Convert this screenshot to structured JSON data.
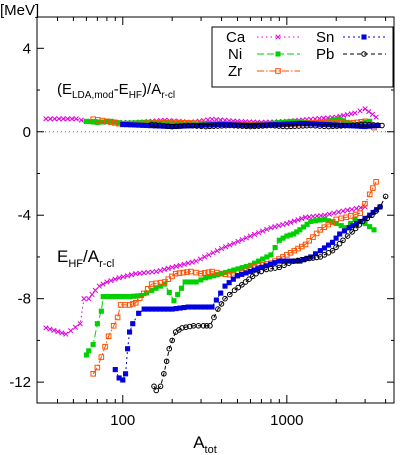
{
  "chart_data": {
    "type": "line",
    "title": "",
    "ylabel": "[MeV]",
    "xlabel": "A",
    "xlabel_sub": "tot",
    "xscale": "log",
    "xlim": [
      30,
      4500
    ],
    "ylim": [
      -13,
      5.5
    ],
    "xticks": [
      100,
      1000
    ],
    "xtick_labels": [
      "100",
      "1000"
    ],
    "yticks": [
      4,
      0,
      -4,
      -8,
      -12
    ],
    "ytick_labels": [
      "4",
      "0",
      "-4",
      "-8",
      "-12"
    ],
    "reference_line_y": 0,
    "annotations": [
      {
        "id": "upper",
        "main": "(E",
        "sub1": "LDA,mod",
        "mid": "-E",
        "sub2": "HF",
        "tail": ")/A",
        "sub3": "r-cl"
      },
      {
        "id": "lower",
        "main": "E",
        "sub1": "HF",
        "tail": "/A",
        "sub3": "r-cl"
      }
    ],
    "legend": {
      "placement": "top-right"
    },
    "series": [
      {
        "name": "Ca",
        "color": "#e000e0",
        "marker": "x",
        "dash": "1.5,3",
        "lower": [
          [
            34,
            -9.4
          ],
          [
            45,
            -9.7
          ],
          [
            55,
            -9.2
          ],
          [
            58,
            -8.0
          ],
          [
            62,
            -8.0
          ],
          [
            68,
            -7.6
          ],
          [
            72,
            -7.4
          ],
          [
            80,
            -7.2
          ],
          [
            95,
            -7.0
          ],
          [
            120,
            -6.8
          ],
          [
            160,
            -6.7
          ],
          [
            200,
            -6.5
          ],
          [
            280,
            -6.2
          ],
          [
            400,
            -5.6
          ],
          [
            600,
            -5.0
          ],
          [
            800,
            -4.6
          ],
          [
            1000,
            -4.4
          ],
          [
            1300,
            -4.1
          ],
          [
            1700,
            -4.0
          ],
          [
            2200,
            -3.8
          ],
          [
            3000,
            -3.6
          ]
        ],
        "upper": [
          [
            34,
            0.62
          ],
          [
            52,
            0.62
          ],
          [
            60,
            0.5
          ],
          [
            80,
            0.45
          ],
          [
            120,
            0.45
          ],
          [
            180,
            0.55
          ],
          [
            220,
            0.5
          ],
          [
            260,
            0.45
          ],
          [
            350,
            0.6
          ],
          [
            500,
            0.5
          ],
          [
            700,
            0.45
          ],
          [
            1000,
            0.5
          ],
          [
            1400,
            0.6
          ],
          [
            2000,
            0.7
          ],
          [
            2600,
            0.9
          ],
          [
            3000,
            1.1
          ],
          [
            3500,
            0.7
          ]
        ]
      },
      {
        "name": "Ni",
        "color": "#00d000",
        "marker": "square-filled",
        "dash": "7,3",
        "lower": [
          [
            60,
            -10.7
          ],
          [
            62,
            -10.5
          ],
          [
            66,
            -10.2
          ],
          [
            70,
            -9.2
          ],
          [
            74,
            -8.6
          ],
          [
            76,
            -7.9
          ],
          [
            90,
            -7.9
          ],
          [
            110,
            -7.9
          ],
          [
            130,
            -7.85
          ],
          [
            150,
            -7.6
          ],
          [
            180,
            -7.3
          ],
          [
            205,
            -8.1
          ],
          [
            240,
            -7.2
          ],
          [
            280,
            -7.2
          ],
          [
            320,
            -7.0
          ],
          [
            400,
            -6.8
          ],
          [
            600,
            -6.4
          ],
          [
            800,
            -5.9
          ],
          [
            900,
            -5.2
          ],
          [
            1000,
            -5.0
          ],
          [
            1100,
            -4.9
          ],
          [
            1200,
            -4.7
          ],
          [
            1400,
            -4.3
          ],
          [
            1700,
            -4.2
          ],
          [
            2000,
            -4.4
          ],
          [
            2300,
            -4.6
          ],
          [
            2600,
            -4.2
          ],
          [
            3000,
            -4.4
          ],
          [
            3400,
            -4.7
          ]
        ],
        "upper": [
          [
            60,
            0.5
          ],
          [
            70,
            0.45
          ],
          [
            85,
            0.5
          ],
          [
            100,
            0.4
          ],
          [
            140,
            0.45
          ],
          [
            200,
            0.4
          ],
          [
            300,
            0.35
          ],
          [
            450,
            0.4
          ],
          [
            600,
            0.35
          ],
          [
            800,
            0.4
          ],
          [
            1100,
            0.5
          ],
          [
            1500,
            0.4
          ],
          [
            2100,
            0.6
          ],
          [
            2600,
            0.3
          ],
          [
            3200,
            0.5
          ]
        ]
      },
      {
        "name": "Zr",
        "color": "#ff5000",
        "marker": "square-open",
        "dash": "7,2,1.5,2",
        "lower": [
          [
            66,
            -11.6
          ],
          [
            70,
            -11.3
          ],
          [
            74,
            -10.8
          ],
          [
            78,
            -10.3
          ],
          [
            82,
            -9.8
          ],
          [
            88,
            -9.3
          ],
          [
            93,
            -8.9
          ],
          [
            97,
            -8.3
          ],
          [
            110,
            -8.3
          ],
          [
            120,
            -8.2
          ],
          [
            150,
            -7.3
          ],
          [
            180,
            -7.2
          ],
          [
            210,
            -6.8
          ],
          [
            260,
            -6.7
          ],
          [
            300,
            -6.8
          ],
          [
            350,
            -6.7
          ],
          [
            400,
            -6.8
          ],
          [
            500,
            -6.9
          ],
          [
            600,
            -6.5
          ],
          [
            800,
            -6.3
          ],
          [
            1000,
            -5.9
          ],
          [
            1300,
            -5.4
          ],
          [
            1600,
            -4.7
          ],
          [
            2000,
            -4.2
          ],
          [
            2300,
            -4.1
          ],
          [
            2800,
            -3.9
          ],
          [
            3200,
            -3.0
          ],
          [
            3500,
            -2.4
          ]
        ],
        "upper": [
          [
            66,
            0.6
          ],
          [
            80,
            0.5
          ],
          [
            100,
            0.35
          ],
          [
            140,
            0.4
          ],
          [
            200,
            0.45
          ],
          [
            300,
            0.4
          ],
          [
            400,
            0.35
          ],
          [
            600,
            0.35
          ],
          [
            900,
            0.35
          ],
          [
            1300,
            0.4
          ],
          [
            1800,
            0.45
          ],
          [
            2400,
            0.4
          ],
          [
            3000,
            0.5
          ],
          [
            3400,
            0.2
          ]
        ]
      },
      {
        "name": "Sn",
        "color": "#0000e0",
        "marker": "square-filled",
        "dash": "2,3",
        "lower": [
          [
            90,
            -11.4
          ],
          [
            95,
            -11.8
          ],
          [
            100,
            -11.9
          ],
          [
            104,
            -11.6
          ],
          [
            107,
            -10.4
          ],
          [
            110,
            -9.6
          ],
          [
            115,
            -9.2
          ],
          [
            125,
            -8.7
          ],
          [
            135,
            -8.5
          ],
          [
            160,
            -8.5
          ],
          [
            200,
            -8.5
          ],
          [
            250,
            -8.4
          ],
          [
            300,
            -8.4
          ],
          [
            350,
            -8.4
          ],
          [
            420,
            -7.4
          ],
          [
            500,
            -6.9
          ],
          [
            600,
            -6.7
          ],
          [
            700,
            -6.5
          ],
          [
            900,
            -6.2
          ],
          [
            1200,
            -6.2
          ],
          [
            1400,
            -6.0
          ],
          [
            1600,
            -5.7
          ],
          [
            1900,
            -5.3
          ],
          [
            2100,
            -4.9
          ],
          [
            2400,
            -4.6
          ],
          [
            2800,
            -4.3
          ],
          [
            3200,
            -4.0
          ],
          [
            3700,
            -3.6
          ]
        ],
        "upper": [
          [
            100,
            0.35
          ],
          [
            140,
            0.3
          ],
          [
            200,
            0.25
          ],
          [
            280,
            0.3
          ],
          [
            400,
            0.35
          ],
          [
            600,
            0.3
          ],
          [
            900,
            0.35
          ],
          [
            1200,
            0.4
          ],
          [
            1700,
            0.35
          ],
          [
            2300,
            0.3
          ],
          [
            3000,
            0.25
          ],
          [
            3600,
            0.3
          ]
        ]
      },
      {
        "name": "Pb",
        "color": "#000000",
        "marker": "circle-open",
        "dash": "4,3",
        "lower": [
          [
            155,
            -12.2
          ],
          [
            160,
            -12.4
          ],
          [
            170,
            -12.2
          ],
          [
            178,
            -11.6
          ],
          [
            185,
            -11.0
          ],
          [
            192,
            -10.4
          ],
          [
            200,
            -10.0
          ],
          [
            210,
            -9.6
          ],
          [
            230,
            -9.4
          ],
          [
            270,
            -9.3
          ],
          [
            310,
            -9.3
          ],
          [
            340,
            -9.3
          ],
          [
            380,
            -8.5
          ],
          [
            420,
            -8.0
          ],
          [
            480,
            -7.6
          ],
          [
            560,
            -7.2
          ],
          [
            650,
            -6.8
          ],
          [
            750,
            -6.6
          ],
          [
            900,
            -6.5
          ],
          [
            1100,
            -6.2
          ],
          [
            1300,
            -6.1
          ],
          [
            1600,
            -6.0
          ],
          [
            1900,
            -5.7
          ],
          [
            2200,
            -5.2
          ],
          [
            2500,
            -4.8
          ],
          [
            2900,
            -4.3
          ],
          [
            3300,
            -4.0
          ],
          [
            3700,
            -3.6
          ],
          [
            4000,
            -3.1
          ]
        ],
        "upper": [
          [
            150,
            0.35
          ],
          [
            200,
            0.25
          ],
          [
            250,
            0.3
          ],
          [
            320,
            0.25
          ],
          [
            450,
            0.3
          ],
          [
            600,
            0.25
          ],
          [
            800,
            0.3
          ],
          [
            1000,
            0.25
          ],
          [
            1400,
            0.3
          ],
          [
            1800,
            0.25
          ],
          [
            2400,
            0.3
          ],
          [
            3000,
            0.35
          ],
          [
            3800,
            0.3
          ]
        ]
      }
    ]
  }
}
